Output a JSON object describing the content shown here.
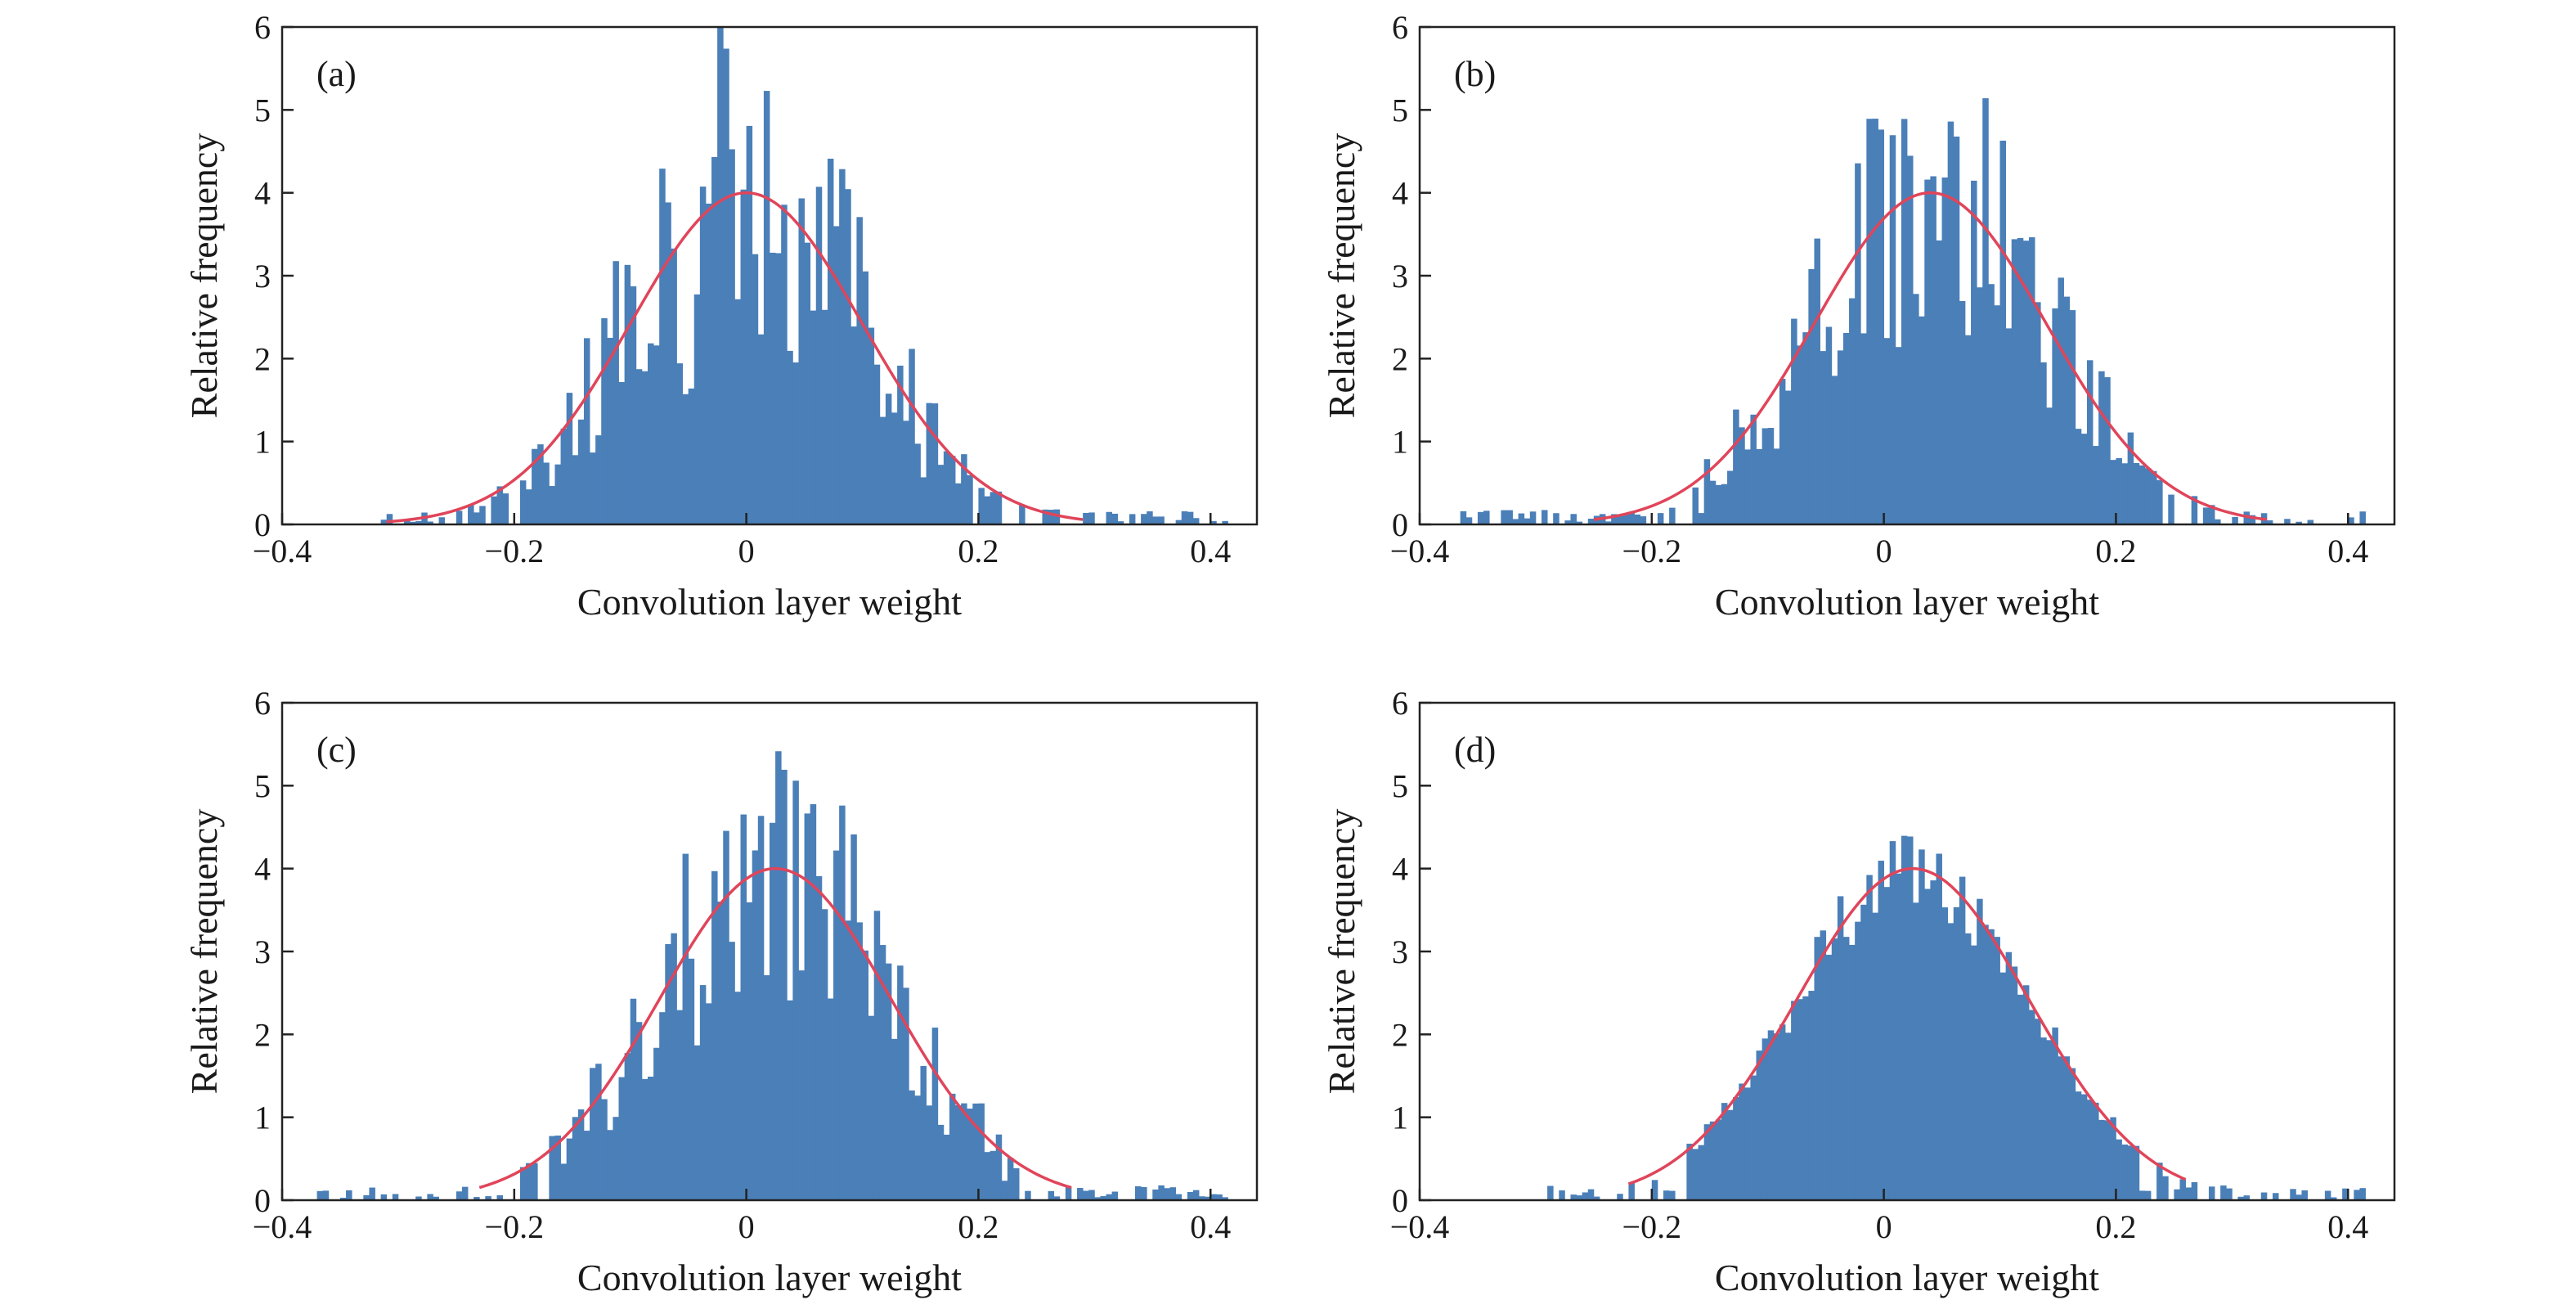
{
  "chart_data": [
    {
      "type": "bar",
      "panel_label": "(a)",
      "xlabel": "Convolution layer weight",
      "ylabel": "Relative frequency",
      "xlim": [
        -0.4,
        0.44
      ],
      "ylim": [
        0,
        6
      ],
      "xticks": [
        -0.4,
        -0.2,
        0,
        0.2,
        0.4
      ],
      "xtick_labels": [
        "−0.4",
        "−0.2",
        "0",
        "0.2",
        "0.4"
      ],
      "yticks": [
        0,
        1,
        2,
        3,
        4,
        5,
        6
      ],
      "ytick_labels": [
        "0",
        "1",
        "2",
        "3",
        "4",
        "5",
        "6"
      ],
      "bin_width": 0.005,
      "bins_start": -0.32,
      "bins_end": 0.42,
      "fit": {
        "type": "normal",
        "mean": 0.0,
        "peak": 4.0,
        "sd": 0.0998,
        "range": [
          -0.31,
          0.29
        ]
      },
      "bar_color": "#4a7fb8",
      "curve_color": "#e0455a"
    },
    {
      "type": "bar",
      "panel_label": "(b)",
      "xlabel": "Convolution layer weight",
      "ylabel": "Relative frequency",
      "xlim": [
        -0.4,
        0.44
      ],
      "ylim": [
        0,
        6
      ],
      "xticks": [
        -0.4,
        -0.2,
        0,
        0.2,
        0.4
      ],
      "xtick_labels": [
        "−0.4",
        "−0.2",
        "0",
        "0.2",
        "0.4"
      ],
      "yticks": [
        0,
        1,
        2,
        3,
        4,
        5,
        6
      ],
      "ytick_labels": [
        "0",
        "1",
        "2",
        "3",
        "4",
        "5",
        "6"
      ],
      "bin_width": 0.005,
      "bins_start": -0.37,
      "bins_end": 0.42,
      "fit": {
        "type": "normal",
        "mean": 0.04,
        "peak": 4.0,
        "sd": 0.0998,
        "range": [
          -0.25,
          0.33
        ]
      },
      "bar_color": "#4a7fb8",
      "curve_color": "#e0455a"
    },
    {
      "type": "bar",
      "panel_label": "(c)",
      "xlabel": "Convolution layer weight",
      "ylabel": "Relative frequency",
      "xlim": [
        -0.4,
        0.44
      ],
      "ylim": [
        0,
        6
      ],
      "xticks": [
        -0.4,
        -0.2,
        0,
        0.2,
        0.4
      ],
      "xtick_labels": [
        "−0.4",
        "−0.2",
        "0",
        "0.2",
        "0.4"
      ],
      "yticks": [
        0,
        1,
        2,
        3,
        4,
        5,
        6
      ],
      "ytick_labels": [
        "0",
        "1",
        "2",
        "3",
        "4",
        "5",
        "6"
      ],
      "bin_width": 0.005,
      "bins_start": -0.37,
      "bins_end": 0.42,
      "fit": {
        "type": "normal",
        "mean": 0.025,
        "peak": 4.0,
        "sd": 0.0998,
        "range": [
          -0.23,
          0.28
        ]
      },
      "bar_color": "#4a7fb8",
      "curve_color": "#e0455a"
    },
    {
      "type": "bar",
      "panel_label": "(d)",
      "xlabel": "Convolution layer weight",
      "ylabel": "Relative frequency",
      "xlim": [
        -0.4,
        0.44
      ],
      "ylim": [
        0,
        6
      ],
      "xticks": [
        -0.4,
        -0.2,
        0,
        0.2,
        0.4
      ],
      "xtick_labels": [
        "−0.4",
        "−0.2",
        "0",
        "0.2",
        "0.4"
      ],
      "yticks": [
        0,
        1,
        2,
        3,
        4,
        5,
        6
      ],
      "ytick_labels": [
        "0",
        "1",
        "2",
        "3",
        "4",
        "5",
        "6"
      ],
      "bin_width": 0.005,
      "bins_start": -0.3,
      "bins_end": 0.42,
      "fit": {
        "type": "normal",
        "mean": 0.025,
        "peak": 4.0,
        "sd": 0.0998,
        "range": [
          -0.22,
          0.26
        ]
      },
      "bar_color": "#4a7fb8",
      "curve_color": "#e0455a"
    }
  ]
}
